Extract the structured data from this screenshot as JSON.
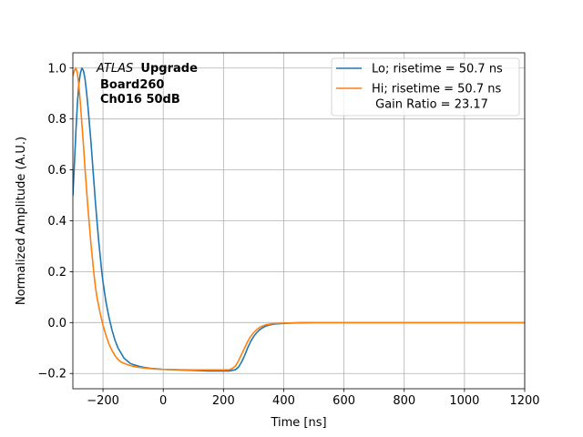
{
  "chart_data": {
    "type": "line",
    "xlabel": "Time [ns]",
    "ylabel": "Normalized Amplitude (A.U.)",
    "xlim": [
      -300,
      1200
    ],
    "ylim": [
      -0.26,
      1.06
    ],
    "xticks": [
      -200,
      0,
      200,
      400,
      600,
      800,
      1000,
      1200
    ],
    "xtick_labels": [
      "−200",
      "0",
      "200",
      "400",
      "600",
      "800",
      "1000",
      "1200"
    ],
    "yticks": [
      -0.2,
      0.0,
      0.2,
      0.4,
      0.6,
      0.8,
      1.0
    ],
    "ytick_labels": [
      "−0.2",
      "0.0",
      "0.2",
      "0.4",
      "0.6",
      "0.8",
      "1.0"
    ],
    "grid": true,
    "legend_position": "top-right",
    "annotation": {
      "italic": "ATLAS",
      "bold": "Upgrade",
      "line2": "Board260",
      "line3": "Ch016 50dB"
    },
    "series": [
      {
        "name": "Lo; risetime = 50.7 ns",
        "color": "#1f77b4",
        "points": [
          [
            -300,
            0.5
          ],
          [
            -295,
            0.62
          ],
          [
            -290,
            0.75
          ],
          [
            -285,
            0.86
          ],
          [
            -280,
            0.94
          ],
          [
            -275,
            0.98
          ],
          [
            -270,
            1.0
          ],
          [
            -265,
            0.99
          ],
          [
            -260,
            0.96
          ],
          [
            -255,
            0.91
          ],
          [
            -250,
            0.85
          ],
          [
            -245,
            0.78
          ],
          [
            -240,
            0.71
          ],
          [
            -235,
            0.63
          ],
          [
            -230,
            0.55
          ],
          [
            -225,
            0.47
          ],
          [
            -220,
            0.4
          ],
          [
            -215,
            0.33
          ],
          [
            -210,
            0.27
          ],
          [
            -205,
            0.21
          ],
          [
            -200,
            0.16
          ],
          [
            -190,
            0.08
          ],
          [
            -180,
            0.02
          ],
          [
            -170,
            -0.03
          ],
          [
            -160,
            -0.07
          ],
          [
            -150,
            -0.1
          ],
          [
            -140,
            -0.12
          ],
          [
            -130,
            -0.14
          ],
          [
            -120,
            -0.15
          ],
          [
            -110,
            -0.16
          ],
          [
            -100,
            -0.165
          ],
          [
            -80,
            -0.172
          ],
          [
            -60,
            -0.177
          ],
          [
            -40,
            -0.18
          ],
          [
            -20,
            -0.182
          ],
          [
            0,
            -0.184
          ],
          [
            50,
            -0.186
          ],
          [
            100,
            -0.188
          ],
          [
            150,
            -0.19
          ],
          [
            200,
            -0.19
          ],
          [
            220,
            -0.19
          ],
          [
            240,
            -0.185
          ],
          [
            250,
            -0.175
          ],
          [
            260,
            -0.155
          ],
          [
            270,
            -0.13
          ],
          [
            280,
            -0.1
          ],
          [
            290,
            -0.075
          ],
          [
            300,
            -0.055
          ],
          [
            310,
            -0.04
          ],
          [
            320,
            -0.028
          ],
          [
            330,
            -0.02
          ],
          [
            340,
            -0.014
          ],
          [
            350,
            -0.01
          ],
          [
            370,
            -0.006
          ],
          [
            400,
            -0.003
          ],
          [
            450,
            -0.001
          ],
          [
            500,
            0.0
          ],
          [
            600,
            0.0
          ],
          [
            700,
            0.0
          ],
          [
            800,
            0.0
          ],
          [
            900,
            0.0
          ],
          [
            1000,
            0.0
          ],
          [
            1100,
            0.0
          ],
          [
            1200,
            0.0
          ]
        ]
      },
      {
        "name": "Hi; risetime = 50.7 ns\n Gain Ratio = 23.17",
        "color": "#ff7f0e",
        "points": [
          [
            -300,
            0.97
          ],
          [
            -295,
            0.99
          ],
          [
            -290,
            1.0
          ],
          [
            -285,
            0.98
          ],
          [
            -280,
            0.93
          ],
          [
            -275,
            0.86
          ],
          [
            -270,
            0.78
          ],
          [
            -265,
            0.7
          ],
          [
            -260,
            0.61
          ],
          [
            -255,
            0.53
          ],
          [
            -250,
            0.45
          ],
          [
            -245,
            0.38
          ],
          [
            -240,
            0.31
          ],
          [
            -235,
            0.25
          ],
          [
            -230,
            0.19
          ],
          [
            -225,
            0.14
          ],
          [
            -220,
            0.1
          ],
          [
            -210,
            0.04
          ],
          [
            -200,
            -0.01
          ],
          [
            -190,
            -0.05
          ],
          [
            -180,
            -0.085
          ],
          [
            -170,
            -0.11
          ],
          [
            -160,
            -0.13
          ],
          [
            -150,
            -0.145
          ],
          [
            -140,
            -0.155
          ],
          [
            -120,
            -0.165
          ],
          [
            -100,
            -0.172
          ],
          [
            -80,
            -0.176
          ],
          [
            -60,
            -0.179
          ],
          [
            -40,
            -0.181
          ],
          [
            -20,
            -0.183
          ],
          [
            0,
            -0.184
          ],
          [
            50,
            -0.185
          ],
          [
            100,
            -0.186
          ],
          [
            150,
            -0.186
          ],
          [
            200,
            -0.186
          ],
          [
            220,
            -0.185
          ],
          [
            230,
            -0.18
          ],
          [
            240,
            -0.17
          ],
          [
            250,
            -0.15
          ],
          [
            260,
            -0.125
          ],
          [
            270,
            -0.1
          ],
          [
            280,
            -0.075
          ],
          [
            290,
            -0.055
          ],
          [
            300,
            -0.04
          ],
          [
            310,
            -0.028
          ],
          [
            320,
            -0.019
          ],
          [
            330,
            -0.013
          ],
          [
            340,
            -0.009
          ],
          [
            360,
            -0.005
          ],
          [
            400,
            -0.002
          ],
          [
            450,
            -0.001
          ],
          [
            500,
            0.0
          ],
          [
            600,
            0.0
          ],
          [
            700,
            0.0
          ],
          [
            800,
            0.0
          ],
          [
            900,
            0.0
          ],
          [
            1000,
            0.0
          ],
          [
            1100,
            0.0
          ],
          [
            1200,
            0.0
          ]
        ]
      }
    ]
  }
}
